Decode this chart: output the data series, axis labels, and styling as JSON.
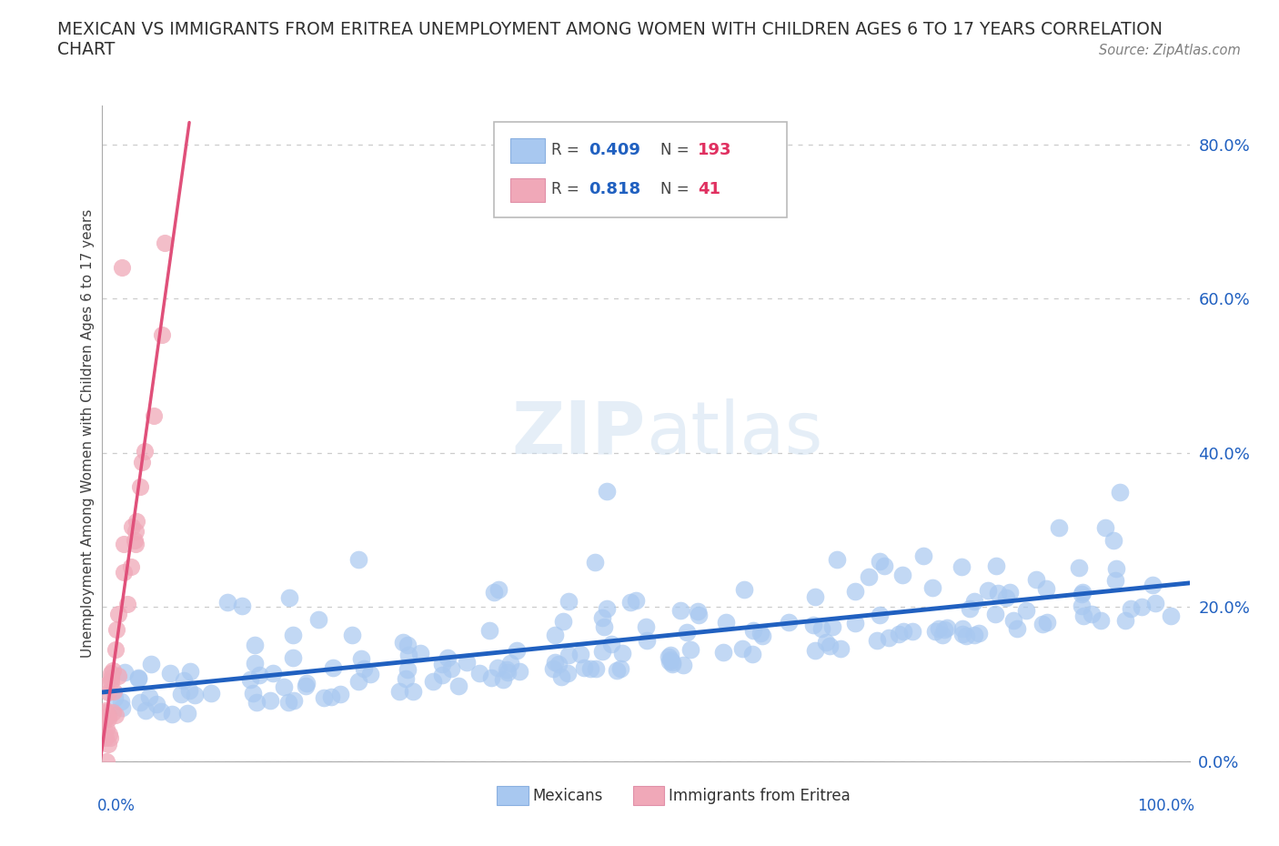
{
  "title_line1": "MEXICAN VS IMMIGRANTS FROM ERITREA UNEMPLOYMENT AMONG WOMEN WITH CHILDREN AGES 6 TO 17 YEARS CORRELATION",
  "title_line2": "CHART",
  "source_text": "Source: ZipAtlas.com",
  "ylabel": "Unemployment Among Women with Children Ages 6 to 17 years",
  "xlim": [
    0.0,
    1.0
  ],
  "ylim": [
    0.0,
    0.85
  ],
  "yticks": [
    0.0,
    0.2,
    0.4,
    0.6,
    0.8
  ],
  "ytick_labels": [
    "0.0%",
    "20.0%",
    "40.0%",
    "60.0%",
    "80.0%"
  ],
  "mexican_R": 0.409,
  "mexican_N": 193,
  "eritrea_R": 0.818,
  "eritrea_N": 41,
  "mexican_dot_color": "#a8c8f0",
  "mexican_line_color": "#2060c0",
  "eritrea_dot_color": "#f0a8b8",
  "eritrea_line_color": "#e0507a",
  "watermark_top": "ZIP",
  "watermark_bottom": "atlas",
  "legend_R_color": "#2060c0",
  "legend_N_color": "#e03060",
  "background_color": "#ffffff",
  "grid_color": "#cccccc",
  "title_color": "#303030",
  "source_color": "#808080",
  "tick_color": "#2060c0"
}
